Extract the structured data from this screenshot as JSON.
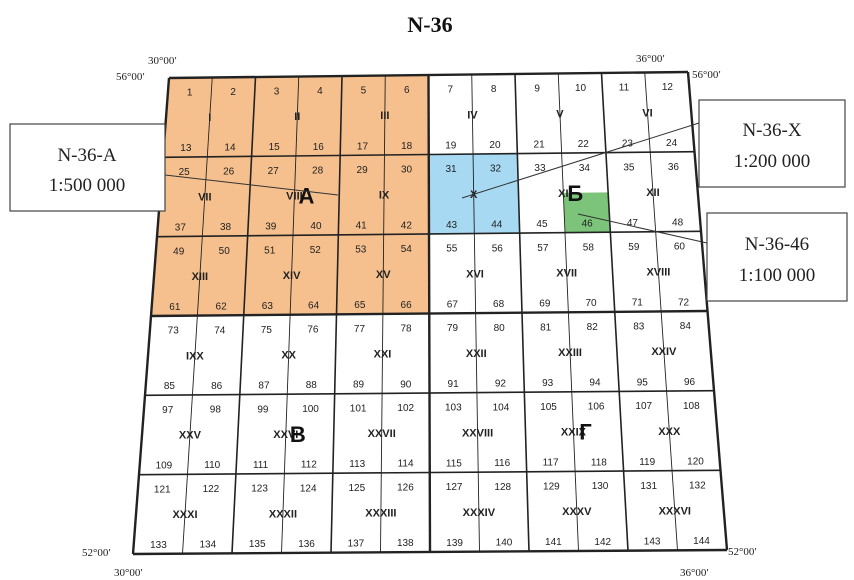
{
  "title": "N-36",
  "corners": {
    "top_left_lon": "30°00′",
    "top_left_lat": "56°00′",
    "top_right_lon": "36°00′",
    "top_right_lat": "56°00′",
    "bottom_left_lat": "52°00′",
    "bottom_left_lon": "30°00′",
    "bottom_right_lat": "52°00′",
    "bottom_right_lon": "36°00′"
  },
  "quarters": [
    "А",
    "Б",
    "В",
    "Г"
  ],
  "romans": [
    "I",
    "II",
    "III",
    "IV",
    "V",
    "VI",
    "VII",
    "VIII",
    "IX",
    "X",
    "XI",
    "XII",
    "XIII",
    "XIV",
    "XV",
    "XVI",
    "XVII",
    "XVIII",
    "IXX",
    "XX",
    "XXI",
    "XXII",
    "XXIII",
    "XXIV",
    "XXV",
    "XXVI",
    "XXVII",
    "XXVIII",
    "XXIX",
    "XXX",
    "XXXI",
    "XXXII",
    "XXXIII",
    "XXXIV",
    "XXXV",
    "XXXVI"
  ],
  "highlights": {
    "quarter_A_color": "#f6c08e",
    "sheet_X_color": "#a7d9f2",
    "sheet_46_color": "#7cc47a"
  },
  "callouts": [
    {
      "name": "N-36-A",
      "scale": "1:500 000"
    },
    {
      "name": "N-36-X",
      "scale": "1:200 000"
    },
    {
      "name": "N-36-46",
      "scale": "1:100 000"
    }
  ]
}
